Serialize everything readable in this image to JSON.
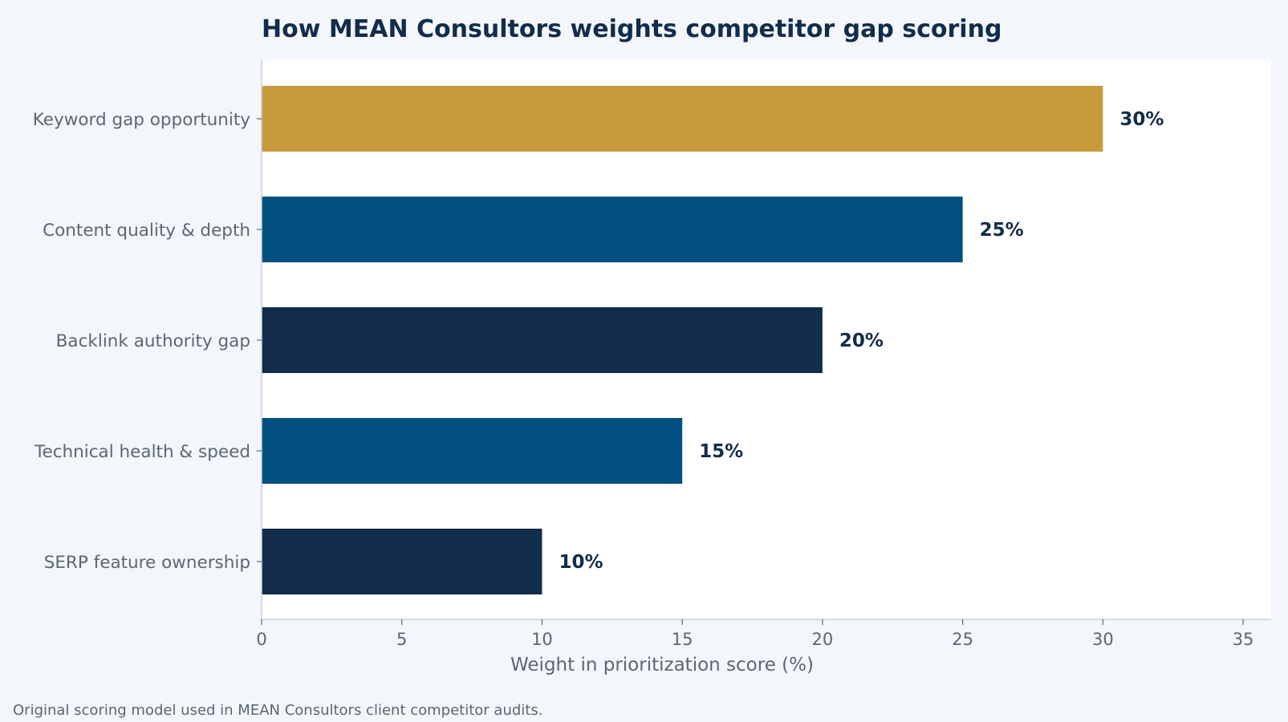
{
  "chart_data": {
    "type": "bar",
    "orientation": "horizontal",
    "title": "How MEAN Consultors weights competitor gap scoring",
    "xlabel": "Weight in prioritization score (%)",
    "ylabel": "",
    "categories": [
      "Keyword gap opportunity",
      "Content quality & depth",
      "Backlink authority gap",
      "Technical health & speed",
      "SERP feature ownership"
    ],
    "values": [
      30,
      25,
      20,
      15,
      10
    ],
    "value_labels": [
      "30%",
      "25%",
      "20%",
      "15%",
      "10%"
    ],
    "bar_colors": [
      "#c79b3c",
      "#02507f",
      "#122c4b",
      "#02507f",
      "#122c4b"
    ],
    "xlim": [
      0,
      36
    ],
    "xticks": [
      0,
      5,
      10,
      15,
      20,
      25,
      30,
      35
    ],
    "grid": false,
    "legend": "none",
    "footnote": "Original scoring model used in MEAN Consultors client competitor audits."
  },
  "colors": {
    "page_background": "#f3f6fa",
    "plot_background": "#ffffff",
    "axis": "#c9d1dc",
    "title": "#122c4b",
    "muted_text": "#5b6677"
  }
}
